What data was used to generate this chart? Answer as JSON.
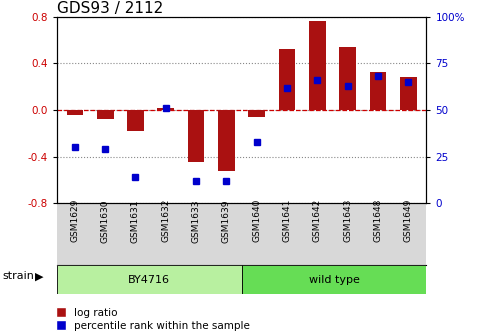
{
  "title": "GDS93 / 2112",
  "samples": [
    "GSM1629",
    "GSM1630",
    "GSM1631",
    "GSM1632",
    "GSM1633",
    "GSM1639",
    "GSM1640",
    "GSM1641",
    "GSM1642",
    "GSM1643",
    "GSM1648",
    "GSM1649"
  ],
  "log_ratio": [
    -0.04,
    -0.08,
    -0.18,
    0.02,
    -0.45,
    -0.52,
    -0.06,
    0.52,
    0.76,
    0.54,
    0.33,
    0.28
  ],
  "percentile": [
    30,
    29,
    14,
    51,
    12,
    12,
    33,
    62,
    66,
    63,
    68,
    65
  ],
  "strain_groups": [
    {
      "label": "BY4716",
      "start": 0,
      "end": 6,
      "color": "#b8f0a0"
    },
    {
      "label": "wild type",
      "start": 6,
      "end": 12,
      "color": "#66dd55"
    }
  ],
  "bar_color": "#aa1111",
  "dot_color": "#0000cc",
  "ylim": [
    -0.8,
    0.8
  ],
  "yticks_left": [
    -0.8,
    -0.4,
    0.0,
    0.4,
    0.8
  ],
  "right_labels": [
    "0",
    "25",
    "50",
    "75",
    "100%"
  ],
  "grid_color": "#888888",
  "zero_line_color": "#cc0000",
  "strain_label": "strain",
  "legend_log_ratio": "log ratio",
  "legend_percentile": "percentile rank within the sample",
  "title_fontsize": 11,
  "tick_fontsize": 7.5,
  "bar_width": 0.55,
  "xtick_bg": "#d8d8d8"
}
